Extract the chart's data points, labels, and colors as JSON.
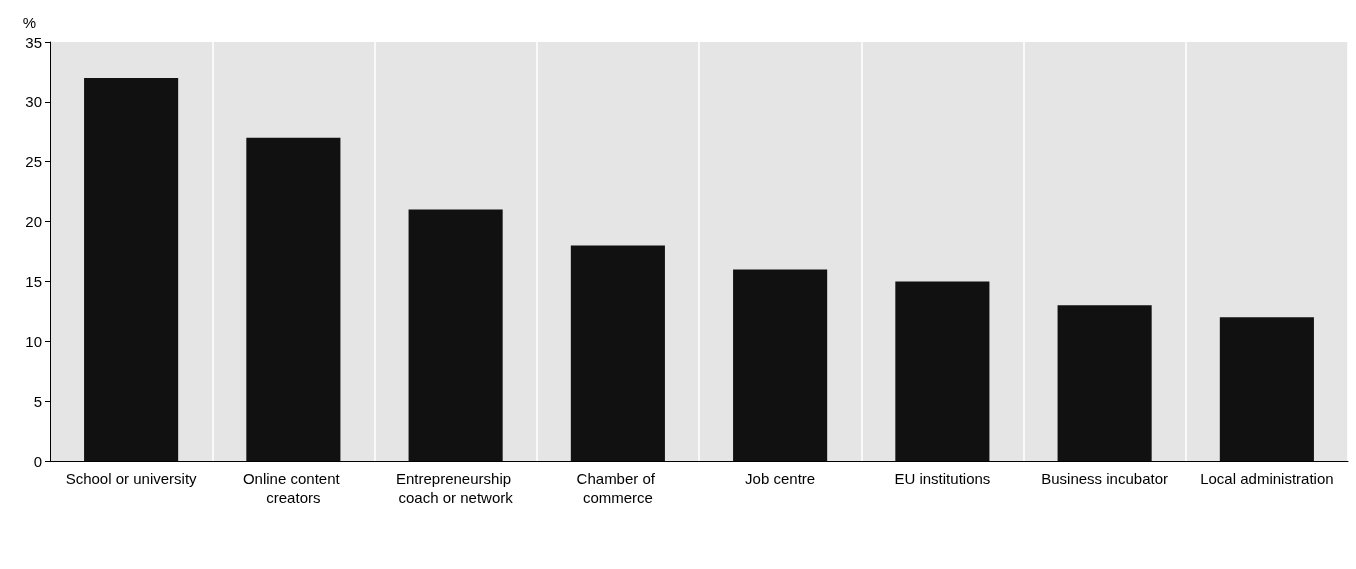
{
  "chart_data": {
    "type": "bar",
    "ylabel": "%",
    "categories": [
      "School or university",
      "Online content creators",
      "Entrepreneurship coach or network",
      "Chamber of commerce",
      "Job centre",
      "EU institutions",
      "Business incubator",
      "Local administration"
    ],
    "values": [
      32,
      27,
      21,
      18,
      16,
      15,
      13,
      12
    ],
    "color": "#111111",
    "ylim": [
      0,
      35
    ],
    "yticks": [
      0,
      5,
      10,
      15,
      20,
      25,
      30,
      35
    ],
    "grid": "x"
  }
}
